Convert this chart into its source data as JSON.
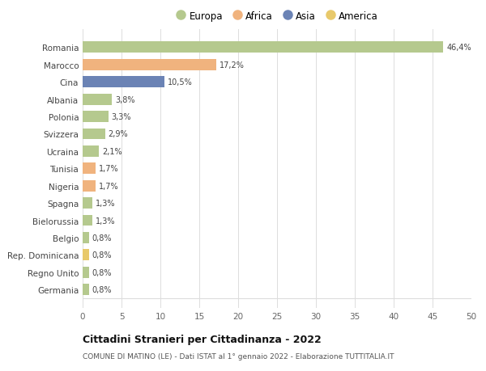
{
  "categories": [
    "Romania",
    "Marocco",
    "Cina",
    "Albania",
    "Polonia",
    "Svizzera",
    "Ucraina",
    "Tunisia",
    "Nigeria",
    "Spagna",
    "Bielorussia",
    "Belgio",
    "Rep. Dominicana",
    "Regno Unito",
    "Germania"
  ],
  "values": [
    46.4,
    17.2,
    10.5,
    3.8,
    3.3,
    2.9,
    2.1,
    1.7,
    1.7,
    1.3,
    1.3,
    0.8,
    0.8,
    0.8,
    0.8
  ],
  "labels": [
    "46,4%",
    "17,2%",
    "10,5%",
    "3,8%",
    "3,3%",
    "2,9%",
    "2,1%",
    "1,7%",
    "1,7%",
    "1,3%",
    "1,3%",
    "0,8%",
    "0,8%",
    "0,8%",
    "0,8%"
  ],
  "colors": [
    "#b5c98e",
    "#f0b37e",
    "#6b83b5",
    "#b5c98e",
    "#b5c98e",
    "#b5c98e",
    "#b5c98e",
    "#f0b37e",
    "#f0b37e",
    "#b5c98e",
    "#b5c98e",
    "#b5c98e",
    "#e8c96b",
    "#b5c98e",
    "#b5c98e"
  ],
  "legend_labels": [
    "Europa",
    "Africa",
    "Asia",
    "America"
  ],
  "legend_colors": [
    "#b5c98e",
    "#f0b37e",
    "#6b83b5",
    "#e8c96b"
  ],
  "title_main": "Cittadini Stranieri per Cittadinanza - 2022",
  "title_sub": "COMUNE DI MATINO (LE) - Dati ISTAT al 1° gennaio 2022 - Elaborazione TUTTITALIA.IT",
  "xlim": [
    0,
    50
  ],
  "xticks": [
    0,
    5,
    10,
    15,
    20,
    25,
    30,
    35,
    40,
    45,
    50
  ],
  "bg_color": "#ffffff",
  "grid_color": "#dddddd"
}
